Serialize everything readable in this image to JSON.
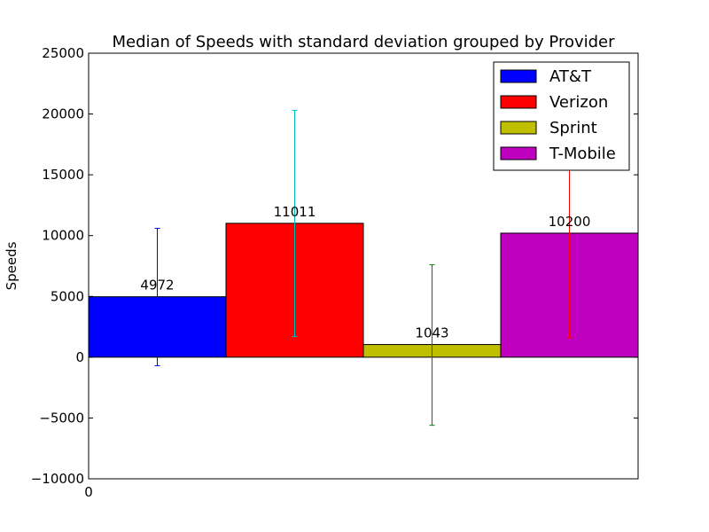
{
  "chart_data": {
    "type": "bar",
    "title": "Median of Speeds with standard deviation grouped by Provider",
    "xlabel": "",
    "ylabel": "Speeds",
    "ylim": [
      -10000,
      25000
    ],
    "yticks": [
      -10000,
      -5000,
      0,
      5000,
      10000,
      15000,
      20000,
      25000
    ],
    "xtick_labels": [
      "0"
    ],
    "legend_position": "top-right",
    "series": [
      {
        "name": "AT&T",
        "value": 4972,
        "label": "4972",
        "err_low": -700,
        "err_high": 10600,
        "color": "#0000ff",
        "err_color": "#0000ff"
      },
      {
        "name": "Verizon",
        "value": 11011,
        "label": "11011",
        "err_low": 1700,
        "err_high": 20300,
        "color": "#ff0000",
        "err_color": "#00bfbf"
      },
      {
        "name": "Sprint",
        "value": 1043,
        "label": "1043",
        "err_low": -5600,
        "err_high": 7600,
        "color": "#bfbf00",
        "err_color": "#008000"
      },
      {
        "name": "T-Mobile",
        "value": 10200,
        "label": "10200",
        "err_low": 1600,
        "err_high": 18800,
        "color": "#bf00bf",
        "err_color": "#ff0000"
      }
    ]
  }
}
